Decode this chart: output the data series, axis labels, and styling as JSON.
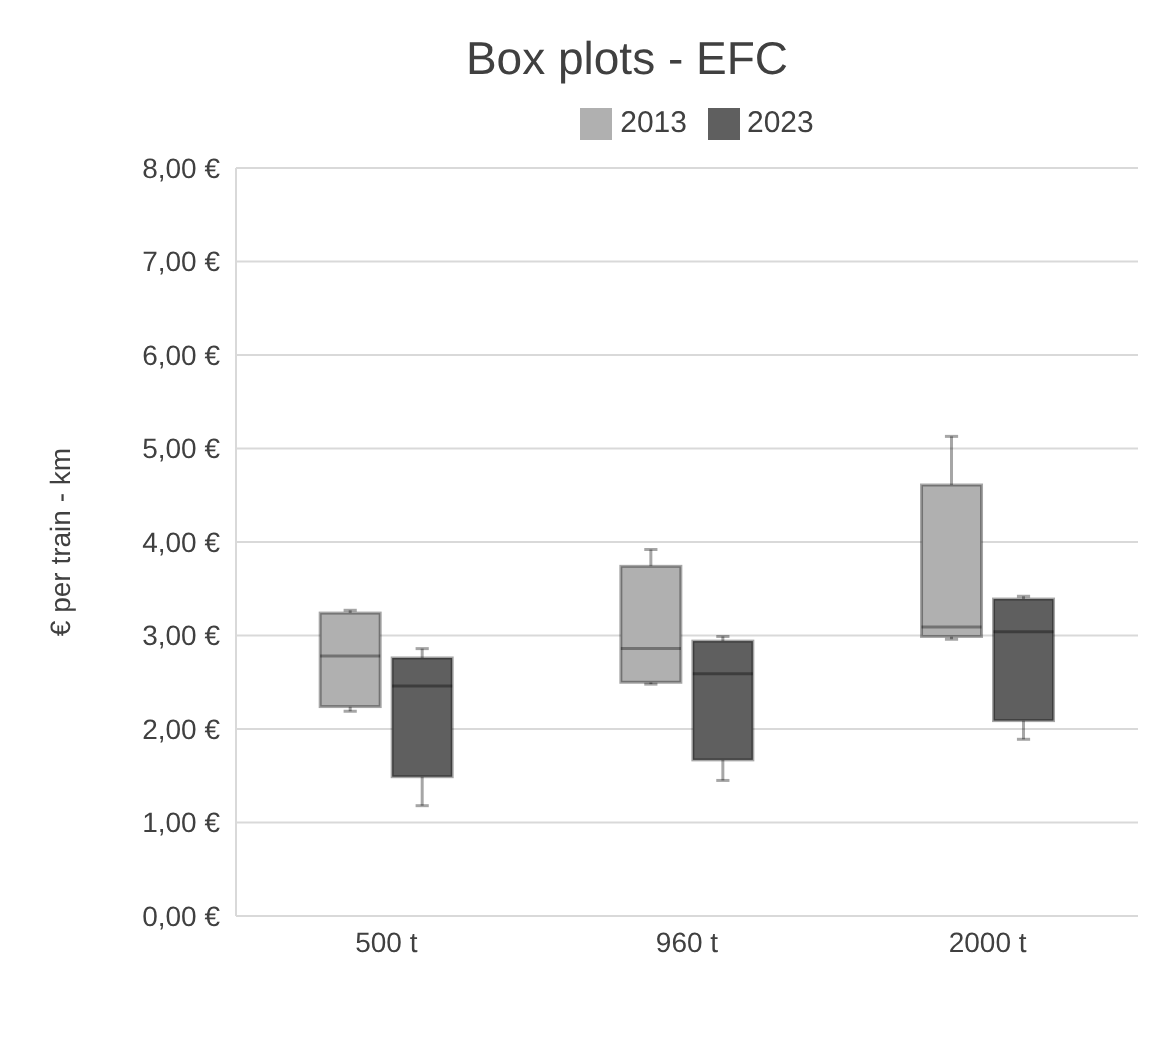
{
  "chart_data": {
    "type": "box",
    "title": "Box plots - EFC",
    "ylabel": "€ per train - km",
    "categories": [
      "500 t",
      "960 t",
      "2000 t"
    ],
    "series": [
      {
        "name": "2013",
        "color": "#b0b0b0",
        "boxes": [
          {
            "low": 2.19,
            "q1": 2.24,
            "median": 2.78,
            "q3": 3.24,
            "high": 3.27
          },
          {
            "low": 2.48,
            "q1": 2.5,
            "median": 2.86,
            "q3": 3.74,
            "high": 3.92
          },
          {
            "low": 2.96,
            "q1": 2.99,
            "median": 3.09,
            "q3": 4.61,
            "high": 5.13
          }
        ]
      },
      {
        "name": "2023",
        "color": "#5f5f5f",
        "boxes": [
          {
            "low": 1.18,
            "q1": 1.49,
            "median": 2.46,
            "q3": 2.76,
            "high": 2.86
          },
          {
            "low": 1.45,
            "q1": 1.67,
            "median": 2.59,
            "q3": 2.94,
            "high": 2.99
          },
          {
            "low": 1.89,
            "q1": 2.09,
            "median": 3.04,
            "q3": 3.39,
            "high": 3.42
          }
        ]
      }
    ],
    "ylim": [
      0,
      8
    ],
    "yticks": [
      {
        "value": 0,
        "label": "0,00 €"
      },
      {
        "value": 1,
        "label": "1,00 €"
      },
      {
        "value": 2,
        "label": "2,00 €"
      },
      {
        "value": 3,
        "label": "3,00 €"
      },
      {
        "value": 4,
        "label": "4,00 €"
      },
      {
        "value": 5,
        "label": "5,00 €"
      },
      {
        "value": 6,
        "label": "6,00 €"
      },
      {
        "value": 7,
        "label": "7,00 €"
      },
      {
        "value": 8,
        "label": "8,00 €"
      }
    ],
    "grid": "y",
    "legend": "top"
  }
}
